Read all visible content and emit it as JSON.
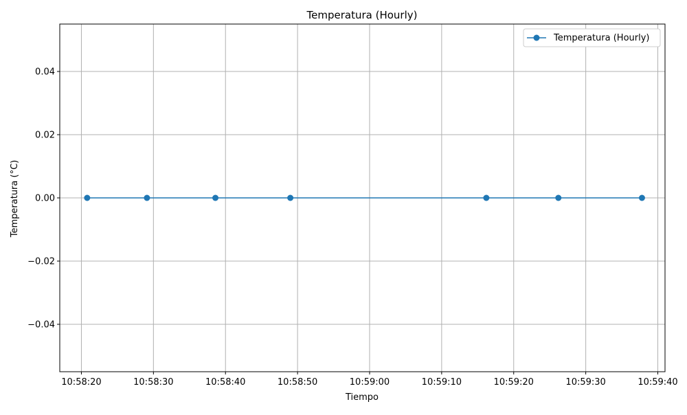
{
  "chart_data": {
    "type": "line",
    "title": "Temperatura (Hourly)",
    "xlabel": "Tiempo",
    "ylabel": "Temperatura (°C)",
    "x_ticks": [
      "10:58:20",
      "10:58:30",
      "10:58:40",
      "10:58:50",
      "10:59:00",
      "10:59:10",
      "10:59:20",
      "10:59:30",
      "10:59:40"
    ],
    "y_ticks": [
      "0.04",
      "0.02",
      "0.00",
      "−0.02",
      "−0.04"
    ],
    "xlim": [
      "10:58:17",
      "10:59:41"
    ],
    "ylim": [
      -0.055,
      0.055
    ],
    "grid": true,
    "legend": {
      "position": "top-right",
      "entries": [
        "Temperatura (Hourly)"
      ]
    },
    "series": [
      {
        "name": "Temperatura (Hourly)",
        "color": "#1f77b4",
        "marker": "circle",
        "x": [
          "10:58:20.8",
          "10:58:29.1",
          "10:58:38.6",
          "10:58:49.0",
          "10:59:16.2",
          "10:59:26.2",
          "10:59:37.8"
        ],
        "y": [
          0,
          0,
          0,
          0,
          0,
          0,
          0
        ]
      }
    ]
  }
}
